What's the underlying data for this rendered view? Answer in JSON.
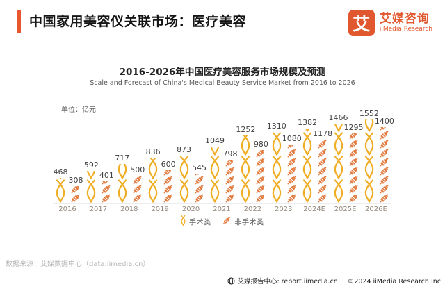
{
  "header": {
    "title": "中国家用美容仪关联市场：医疗美容",
    "logo": {
      "glyph": "艾",
      "name_cn": "艾媒咨询",
      "name_en": "iiMedia Research"
    }
  },
  "chart": {
    "title": "2016-2026年中国医疗美容服务市场规模及预测",
    "subtitle": "Scale and Forecast of China's Medical Beauty Service Market from 2016 to 2026",
    "unit_label": "单位：亿元"
  },
  "chart_data": {
    "type": "bar",
    "categories": [
      "2016",
      "2017",
      "2018",
      "2019",
      "2020",
      "2021",
      "2022",
      "2023",
      "2024E",
      "2025E",
      "2026E"
    ],
    "series": [
      {
        "name": "手术类",
        "icon": "forceps-icon",
        "color": "#F0AE27",
        "values": [
          468,
          592,
          717,
          836,
          873,
          1049,
          1252,
          1310,
          1382,
          1466,
          1552
        ]
      },
      {
        "name": "非手术类",
        "icon": "syringe-icon",
        "color": "#E2793C",
        "values": [
          308,
          401,
          500,
          600,
          545,
          798,
          980,
          1080,
          1178,
          1295,
          1400
        ]
      }
    ],
    "title": "2016-2026年中国医疗美容服务市场规模及预测",
    "xlabel": "",
    "ylabel": "亿元",
    "ylim": [
      0,
      1600
    ],
    "grid": false,
    "legend_position": "bottom",
    "value_labels": true
  },
  "source": "数据来源：艾媒数据中心（data.iimedia.cn）",
  "footer": {
    "report_center": "艾媒报告中心: report.iimedia.cn",
    "copyright": "©2024 iiMedia Research Inc"
  },
  "colors": {
    "accent_orange": "#E8572E",
    "pictogram_gold": "#F0AE27",
    "pictogram_orange": "#E2793C"
  }
}
